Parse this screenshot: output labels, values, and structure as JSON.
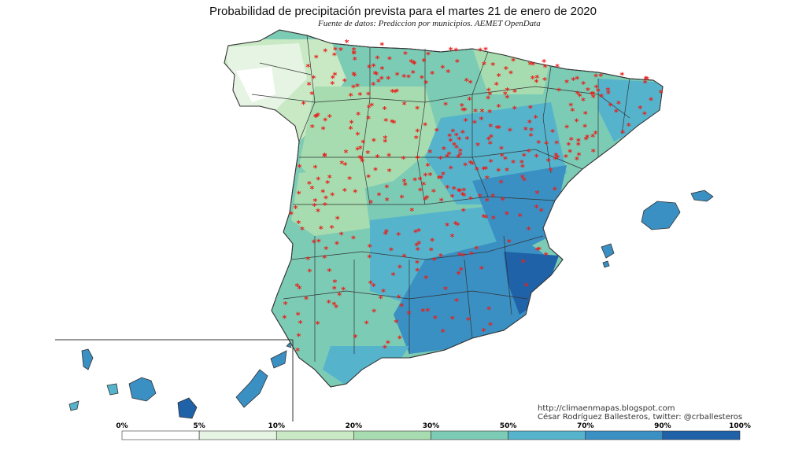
{
  "title": "Probabilidad de precipitación prevista para el martes 21 de enero de 2020",
  "subtitle": "Fuente de datos: Prediccion por municipios. AEMET OpenData",
  "credits": {
    "line1": "http://climaenmapas.blogspot.com",
    "line2": "César Rodríguez Ballesteros, twitter: @crballesteros"
  },
  "legend": {
    "labels": [
      "0%",
      "5%",
      "10%",
      "20%",
      "30%",
      "50%",
      "70%",
      "90%",
      "100%"
    ],
    "colors": [
      "#ffffff",
      "#e6f4e4",
      "#c8e9c4",
      "#a6dcaf",
      "#7ccbb5",
      "#55b3cc",
      "#3a8fc3",
      "#1f62a8"
    ]
  },
  "colors": {
    "marker": "#e8201c",
    "border": "#333333",
    "sea": "#ffffff"
  }
}
